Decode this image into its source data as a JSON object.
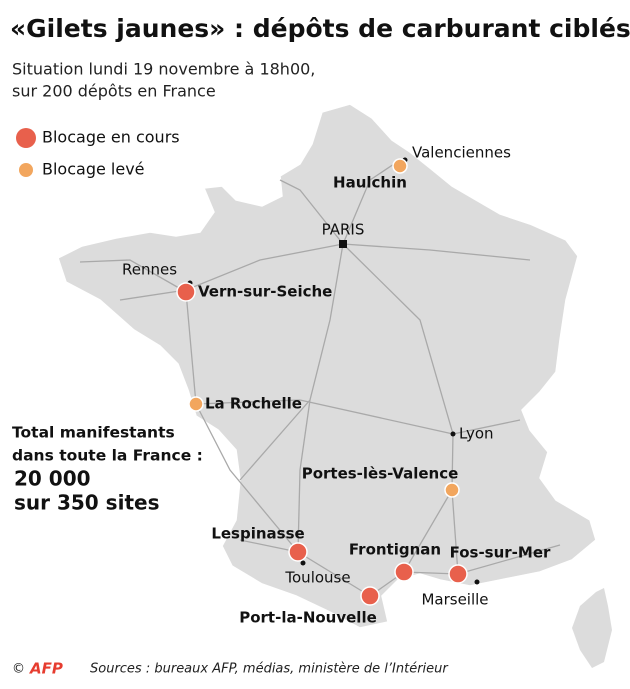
{
  "title": "«Gilets jaunes» : dépôts de carburant ciblés",
  "subtitle": [
    "Situation lundi 19 novembre à 18h00,",
    "sur 200 dépôts en France"
  ],
  "legend": [
    {
      "label": "Blocage en cours",
      "color": "#e8604c",
      "depots": [
        "Vern-sur-Seiche",
        "Lespinasse",
        "Frontignan",
        "Fos-sur-Mer",
        "Port-la-Nouvelle"
      ]
    },
    {
      "label": "Blocage levé",
      "color": "#f2a65e",
      "depots": [
        "Haulchin",
        "La Rochelle",
        "Portes-lès-Valence"
      ]
    }
  ],
  "cities": [
    "Valenciennes",
    "PARIS",
    "Rennes",
    "Lyon",
    "Toulouse",
    "Marseille"
  ],
  "total": {
    "label": [
      "Total manifestants",
      "dans toute la France :"
    ],
    "value": [
      "20 000",
      "sur 350 sites"
    ]
  },
  "footer": {
    "copyright": "©",
    "logo": "AFP",
    "sources": "Sources : bureaux AFP,  médias, ministère de l’Intérieur"
  }
}
